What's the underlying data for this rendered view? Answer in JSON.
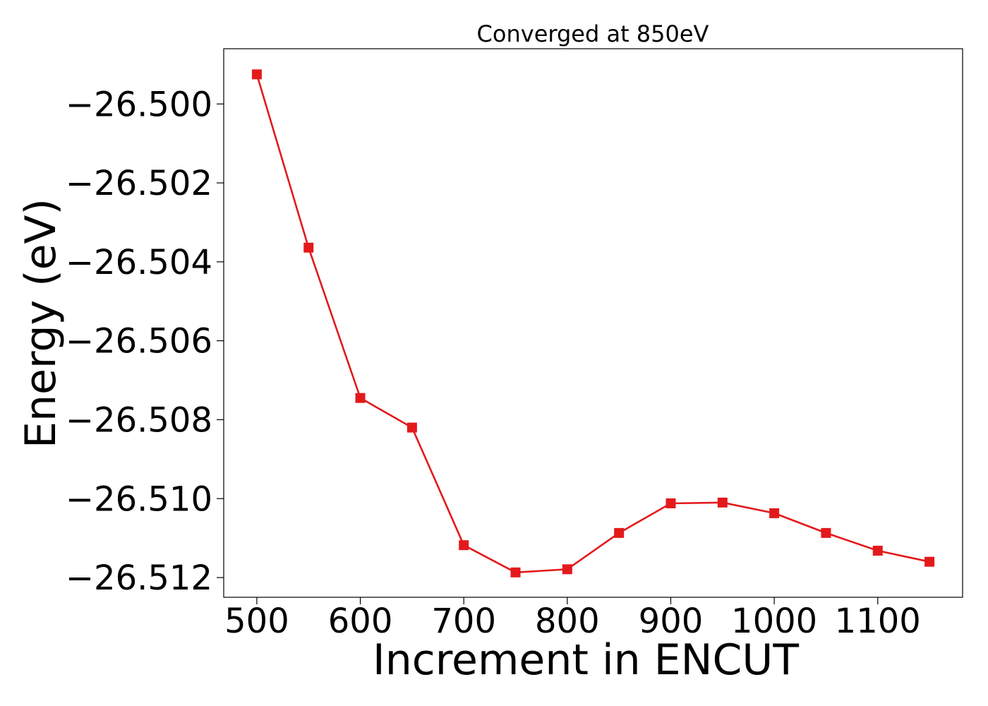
{
  "chart_data": {
    "type": "line",
    "title": "Converged at 850eV",
    "xlabel": "Increment in ENCUT",
    "ylabel": "Energy (eV)",
    "xlim": [
      468,
      1182
    ],
    "ylim": [
      -26.5125,
      -26.4986
    ],
    "x_ticks": [
      500,
      600,
      700,
      800,
      900,
      1000,
      1100
    ],
    "x_tick_labels": [
      "500",
      "600",
      "700",
      "800",
      "900",
      "1000",
      "1100"
    ],
    "y_ticks": [
      -26.5,
      -26.502,
      -26.504,
      -26.506,
      -26.508,
      -26.51,
      -26.512
    ],
    "y_tick_labels": [
      "−26.500",
      "−26.502",
      "−26.504",
      "−26.506",
      "−26.508",
      "−26.510",
      "−26.512"
    ],
    "grid": false,
    "series": [
      {
        "color": "#e31a1c",
        "marker": "square",
        "x": [
          500,
          550,
          600,
          650,
          700,
          750,
          800,
          850,
          900,
          950,
          1000,
          1050,
          1100,
          1150
        ],
        "y": [
          -26.49925,
          -26.50364,
          -26.50745,
          -26.5082,
          -26.51118,
          -26.51187,
          -26.51179,
          -26.51087,
          -26.51012,
          -26.5101,
          -26.51037,
          -26.51087,
          -26.51132,
          -26.5116
        ]
      }
    ]
  }
}
